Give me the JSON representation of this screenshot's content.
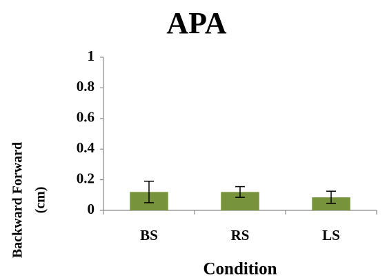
{
  "chart_data": {
    "type": "bar",
    "title": "APA",
    "xlabel": "Condition",
    "ylabel": [
      "Backward   Forward",
      "(cm)"
    ],
    "categories": [
      "BS",
      "RS",
      "LS"
    ],
    "values": [
      0.12,
      0.12,
      0.085
    ],
    "errors": [
      0.07,
      0.035,
      0.04
    ],
    "color": "#77933c",
    "ylim": [
      0,
      1
    ],
    "yticks": [
      0,
      0.2,
      0.4,
      0.6,
      0.8,
      1
    ],
    "grid": false
  }
}
